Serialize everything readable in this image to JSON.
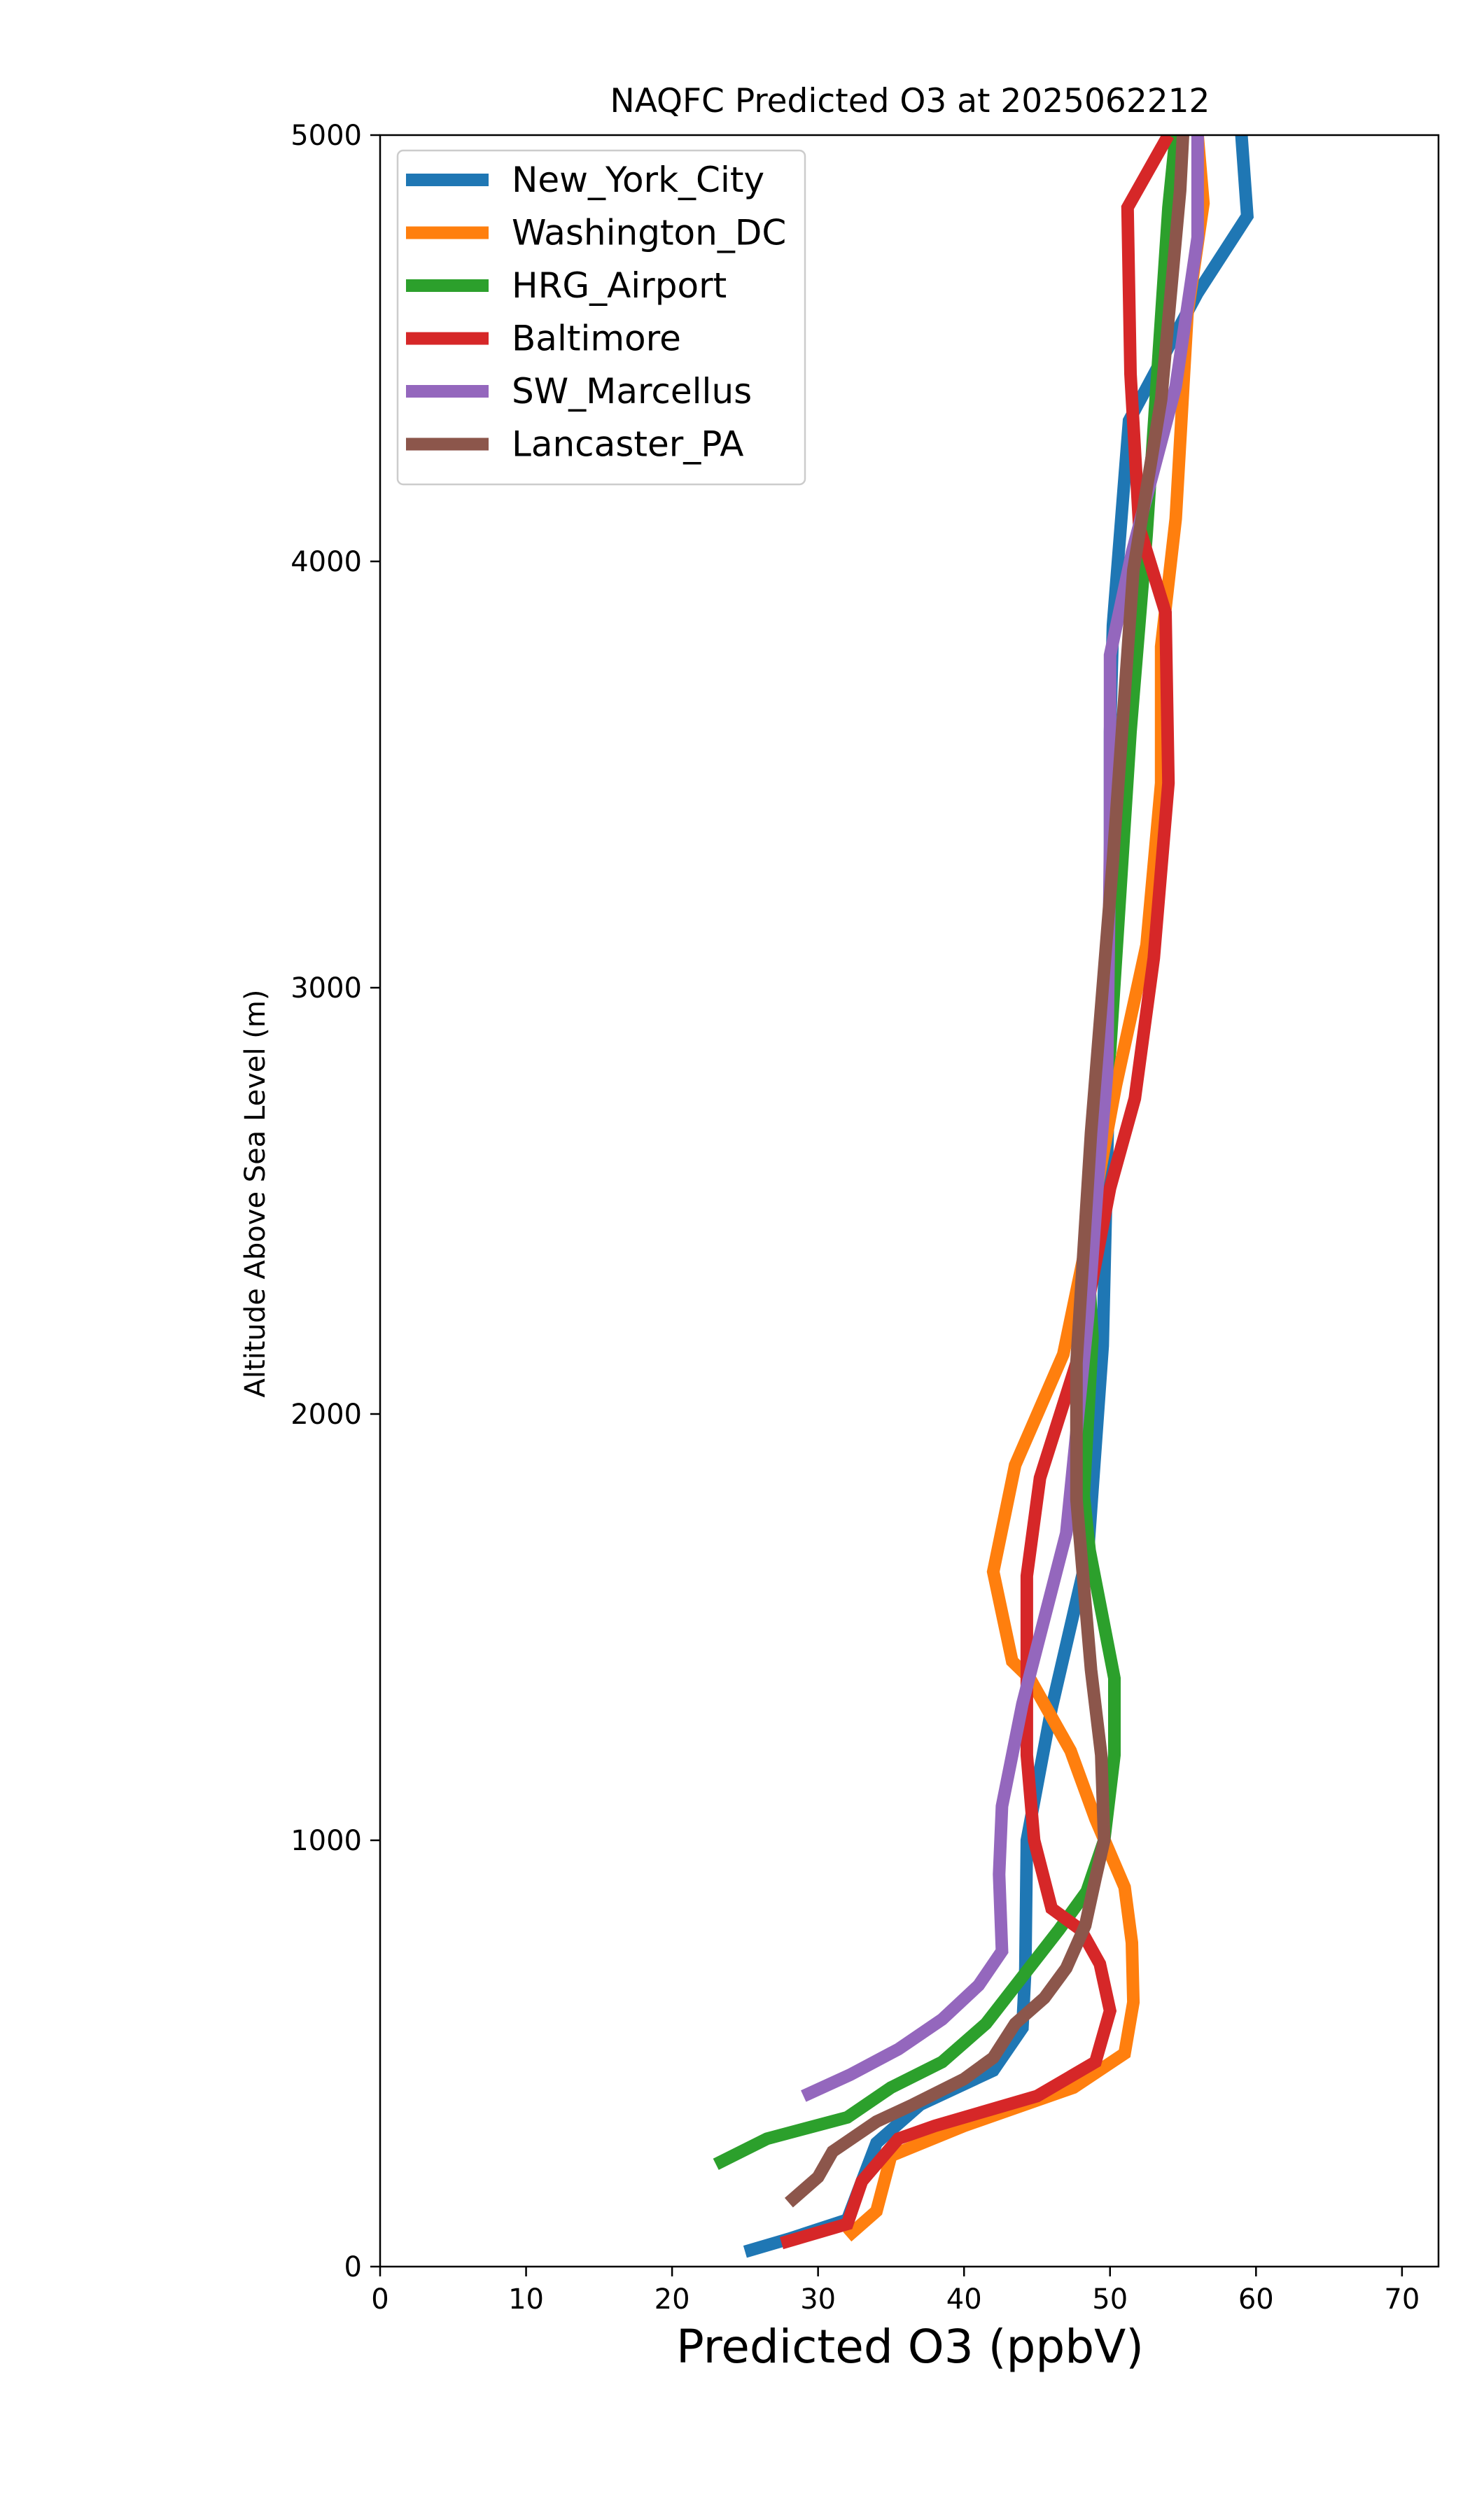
{
  "chart_data": {
    "type": "line",
    "title": "NAQFC Predicted O3 at 2025062212",
    "xlabel": "Predicted O3 (ppbV)",
    "ylabel": "Altitude Above Sea Level (m)",
    "xlim": [
      0,
      72.5
    ],
    "ylim": [
      0,
      5000
    ],
    "x_ticks": [
      0,
      10,
      20,
      30,
      40,
      50,
      60,
      70
    ],
    "y_ticks": [
      0,
      1000,
      2000,
      3000,
      4000,
      5000
    ],
    "grid": false,
    "legend_position": "upper-left",
    "series": [
      {
        "name": "New_York_City",
        "color": "#1f77b4",
        "points": [
          [
            25,
            35
          ],
          [
            28,
            65
          ],
          [
            32,
            110
          ],
          [
            33,
            200
          ],
          [
            34,
            290
          ],
          [
            37,
            380
          ],
          [
            42,
            460
          ],
          [
            44,
            560
          ],
          [
            44.2,
            700
          ],
          [
            44.3,
            1000
          ],
          [
            46,
            1310
          ],
          [
            48.5,
            1680
          ],
          [
            49.5,
            2160
          ],
          [
            50,
            2900
          ],
          [
            50,
            3600
          ],
          [
            50.2,
            3850
          ],
          [
            51.3,
            4330
          ],
          [
            56,
            4630
          ],
          [
            59.4,
            4810
          ],
          [
            59,
            5000
          ]
        ]
      },
      {
        "name": "Washington_DC",
        "color": "#ff7f0e",
        "points": [
          [
            32,
            70
          ],
          [
            34,
            130
          ],
          [
            35,
            260
          ],
          [
            40,
            330
          ],
          [
            47.5,
            420
          ],
          [
            51,
            500
          ],
          [
            51.6,
            620
          ],
          [
            51.5,
            760
          ],
          [
            51,
            890
          ],
          [
            49,
            1050
          ],
          [
            47.3,
            1210
          ],
          [
            44.5,
            1380
          ],
          [
            43.3,
            1420
          ],
          [
            42,
            1630
          ],
          [
            43.5,
            1880
          ],
          [
            46.8,
            2140
          ],
          [
            48.5,
            2420
          ],
          [
            50.4,
            2770
          ],
          [
            52.5,
            3100
          ],
          [
            53.5,
            3480
          ],
          [
            53.5,
            3800
          ],
          [
            54.5,
            4100
          ],
          [
            55.3,
            4580
          ],
          [
            56.4,
            4840
          ],
          [
            56,
            5000
          ]
        ]
      },
      {
        "name": "HRG_Airport",
        "color": "#2ca02c",
        "points": [
          [
            23,
            240
          ],
          [
            26.5,
            300
          ],
          [
            32,
            350
          ],
          [
            35,
            420
          ],
          [
            38.5,
            480
          ],
          [
            41.5,
            570
          ],
          [
            44,
            680
          ],
          [
            46.5,
            790
          ],
          [
            48.4,
            880
          ],
          [
            49.6,
            1000
          ],
          [
            50.3,
            1200
          ],
          [
            50.3,
            1380
          ],
          [
            48.6,
            1680
          ],
          [
            48.2,
            1810
          ],
          [
            48.8,
            2180
          ],
          [
            48.5,
            2360
          ],
          [
            48.8,
            2600
          ],
          [
            50,
            2850
          ],
          [
            51.4,
            3600
          ],
          [
            52.5,
            4060
          ],
          [
            54,
            4830
          ],
          [
            54.5,
            5000
          ]
        ]
      },
      {
        "name": "Baltimore",
        "color": "#d62728",
        "points": [
          [
            27.5,
            55
          ],
          [
            32,
            100
          ],
          [
            33,
            200
          ],
          [
            34,
            240
          ],
          [
            35.5,
            300
          ],
          [
            38,
            330
          ],
          [
            45,
            400
          ],
          [
            49,
            480
          ],
          [
            50,
            600
          ],
          [
            49.3,
            710
          ],
          [
            48,
            790
          ],
          [
            46,
            840
          ],
          [
            44.8,
            1000
          ],
          [
            44.3,
            1200
          ],
          [
            44.3,
            1620
          ],
          [
            45.2,
            1850
          ],
          [
            47.7,
            2120
          ],
          [
            50,
            2530
          ],
          [
            51.7,
            2740
          ],
          [
            53,
            3070
          ],
          [
            54,
            3480
          ],
          [
            53.8,
            3880
          ],
          [
            52,
            4080
          ],
          [
            51.4,
            4440
          ],
          [
            51.2,
            4830
          ],
          [
            54,
            5000
          ]
        ]
      },
      {
        "name": "SW_Marcellus",
        "color": "#9467bd",
        "points": [
          [
            29,
            400
          ],
          [
            32.2,
            450
          ],
          [
            35.5,
            510
          ],
          [
            38.5,
            580
          ],
          [
            41,
            660
          ],
          [
            42.6,
            740
          ],
          [
            42.4,
            920
          ],
          [
            42.6,
            1080
          ],
          [
            44,
            1320
          ],
          [
            45.5,
            1520
          ],
          [
            47,
            1720
          ],
          [
            48.5,
            2230
          ],
          [
            49.2,
            2560
          ],
          [
            49.8,
            2800
          ],
          [
            50,
            3340
          ],
          [
            50,
            3780
          ],
          [
            51.5,
            4020
          ],
          [
            54.5,
            4410
          ],
          [
            56,
            4760
          ],
          [
            56,
            5000
          ]
        ]
      },
      {
        "name": "Lancaster_PA",
        "color": "#8c564b",
        "points": [
          [
            28,
            150
          ],
          [
            30,
            210
          ],
          [
            31,
            270
          ],
          [
            34,
            340
          ],
          [
            36.5,
            380
          ],
          [
            40,
            440
          ],
          [
            42,
            490
          ],
          [
            43.5,
            570
          ],
          [
            45.5,
            630
          ],
          [
            47,
            700
          ],
          [
            48.3,
            800
          ],
          [
            49,
            910
          ],
          [
            49.6,
            1000
          ],
          [
            49.4,
            1200
          ],
          [
            48.7,
            1400
          ],
          [
            47.7,
            1800
          ],
          [
            47.7,
            2120
          ],
          [
            48.7,
            2660
          ],
          [
            50.2,
            3300
          ],
          [
            51.6,
            3980
          ],
          [
            53.5,
            4380
          ],
          [
            54.8,
            4870
          ],
          [
            55,
            5000
          ]
        ]
      }
    ]
  }
}
